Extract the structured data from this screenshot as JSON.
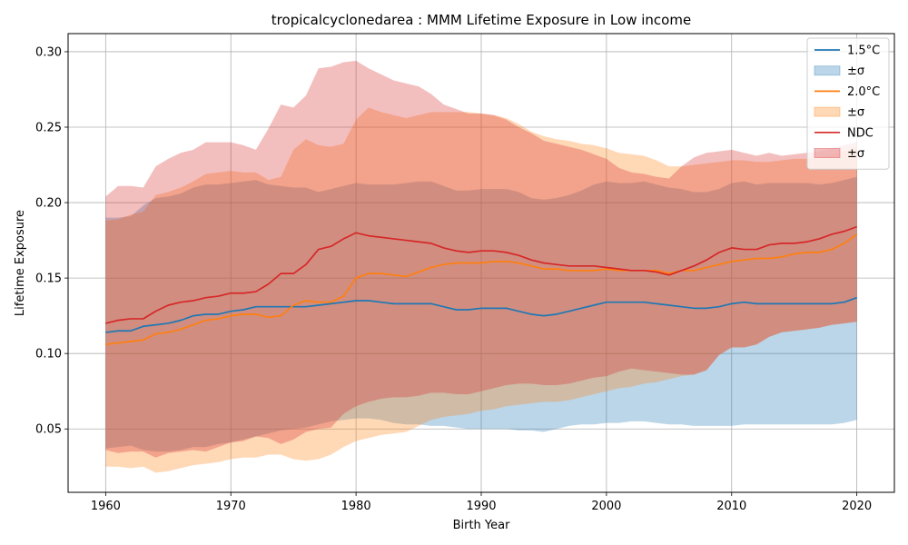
{
  "chart_data": {
    "type": "line",
    "title": "tropicalcyclonedarea : MMM Lifetime Exposure in Low income",
    "xlabel": "Birth Year",
    "ylabel": "Lifetime Exposure",
    "xlim": [
      1957,
      2023
    ],
    "ylim": [
      0.008,
      0.312
    ],
    "xticks": [
      1960,
      1970,
      1980,
      1990,
      2000,
      2010,
      2020
    ],
    "yticks": [
      0.05,
      0.1,
      0.15,
      0.2,
      0.25,
      0.3
    ],
    "ytick_labels": [
      "0.05",
      "0.10",
      "0.15",
      "0.20",
      "0.25",
      "0.30"
    ],
    "grid": true,
    "legend_position": "top-right",
    "x": [
      1960,
      1961,
      1962,
      1963,
      1964,
      1965,
      1966,
      1967,
      1968,
      1969,
      1970,
      1971,
      1972,
      1973,
      1974,
      1975,
      1976,
      1977,
      1978,
      1979,
      1980,
      1981,
      1982,
      1983,
      1984,
      1985,
      1986,
      1987,
      1988,
      1989,
      1990,
      1991,
      1992,
      1993,
      1994,
      1995,
      1996,
      1997,
      1998,
      1999,
      2000,
      2001,
      2002,
      2003,
      2004,
      2005,
      2006,
      2007,
      2008,
      2009,
      2010,
      2011,
      2012,
      2013,
      2014,
      2015,
      2016,
      2017,
      2018,
      2019,
      2020
    ],
    "series": [
      {
        "name": "1.5°C",
        "band_label": "±σ",
        "color": "#1f77b4",
        "mean": [
          0.114,
          0.115,
          0.115,
          0.118,
          0.119,
          0.12,
          0.122,
          0.125,
          0.126,
          0.126,
          0.128,
          0.129,
          0.131,
          0.131,
          0.131,
          0.131,
          0.131,
          0.132,
          0.133,
          0.134,
          0.135,
          0.135,
          0.134,
          0.133,
          0.133,
          0.133,
          0.133,
          0.131,
          0.129,
          0.129,
          0.13,
          0.13,
          0.13,
          0.128,
          0.126,
          0.125,
          0.126,
          0.128,
          0.13,
          0.132,
          0.134,
          0.134,
          0.134,
          0.134,
          0.133,
          0.132,
          0.131,
          0.13,
          0.13,
          0.131,
          0.133,
          0.134,
          0.133,
          0.133,
          0.133,
          0.133,
          0.133,
          0.133,
          0.133,
          0.134,
          0.137
        ],
        "lower": [
          0.037,
          0.038,
          0.039,
          0.036,
          0.035,
          0.035,
          0.036,
          0.038,
          0.038,
          0.04,
          0.041,
          0.043,
          0.045,
          0.047,
          0.049,
          0.05,
          0.051,
          0.053,
          0.055,
          0.056,
          0.057,
          0.057,
          0.056,
          0.054,
          0.053,
          0.053,
          0.052,
          0.052,
          0.051,
          0.05,
          0.05,
          0.05,
          0.05,
          0.049,
          0.049,
          0.048,
          0.05,
          0.052,
          0.053,
          0.053,
          0.054,
          0.054,
          0.055,
          0.055,
          0.054,
          0.053,
          0.053,
          0.052,
          0.052,
          0.052,
          0.052,
          0.053,
          0.053,
          0.053,
          0.053,
          0.053,
          0.053,
          0.053,
          0.053,
          0.054,
          0.056
        ],
        "upper": [
          0.19,
          0.19,
          0.191,
          0.198,
          0.203,
          0.204,
          0.206,
          0.21,
          0.212,
          0.212,
          0.213,
          0.214,
          0.215,
          0.212,
          0.211,
          0.21,
          0.21,
          0.207,
          0.209,
          0.211,
          0.213,
          0.212,
          0.212,
          0.212,
          0.213,
          0.214,
          0.214,
          0.211,
          0.208,
          0.208,
          0.209,
          0.209,
          0.209,
          0.207,
          0.203,
          0.202,
          0.203,
          0.205,
          0.208,
          0.212,
          0.214,
          0.213,
          0.213,
          0.214,
          0.212,
          0.21,
          0.209,
          0.207,
          0.207,
          0.209,
          0.213,
          0.214,
          0.212,
          0.213,
          0.213,
          0.213,
          0.213,
          0.212,
          0.213,
          0.215,
          0.217
        ]
      },
      {
        "name": "2.0°C",
        "band_label": "±σ",
        "color": "#ff7f0e",
        "mean": [
          0.106,
          0.107,
          0.108,
          0.109,
          0.113,
          0.114,
          0.116,
          0.119,
          0.122,
          0.123,
          0.125,
          0.126,
          0.126,
          0.124,
          0.125,
          0.132,
          0.135,
          0.134,
          0.134,
          0.138,
          0.15,
          0.153,
          0.153,
          0.152,
          0.151,
          0.154,
          0.157,
          0.159,
          0.16,
          0.16,
          0.16,
          0.161,
          0.161,
          0.16,
          0.158,
          0.156,
          0.156,
          0.155,
          0.155,
          0.155,
          0.156,
          0.155,
          0.155,
          0.155,
          0.155,
          0.153,
          0.155,
          0.155,
          0.157,
          0.159,
          0.161,
          0.162,
          0.163,
          0.163,
          0.164,
          0.166,
          0.167,
          0.167,
          0.169,
          0.173,
          0.179
        ],
        "lower": [
          0.025,
          0.025,
          0.024,
          0.025,
          0.021,
          0.022,
          0.024,
          0.026,
          0.027,
          0.028,
          0.03,
          0.031,
          0.031,
          0.033,
          0.033,
          0.03,
          0.029,
          0.03,
          0.033,
          0.038,
          0.042,
          0.044,
          0.046,
          0.047,
          0.048,
          0.052,
          0.056,
          0.058,
          0.059,
          0.06,
          0.062,
          0.063,
          0.065,
          0.066,
          0.067,
          0.068,
          0.068,
          0.069,
          0.071,
          0.073,
          0.075,
          0.077,
          0.078,
          0.08,
          0.081,
          0.083,
          0.085,
          0.086,
          0.089,
          0.099,
          0.104,
          0.104,
          0.106,
          0.111,
          0.114,
          0.115,
          0.116,
          0.117,
          0.119,
          0.12,
          0.121
        ],
        "upper": [
          0.188,
          0.189,
          0.192,
          0.194,
          0.205,
          0.207,
          0.21,
          0.214,
          0.219,
          0.22,
          0.221,
          0.22,
          0.22,
          0.215,
          0.217,
          0.235,
          0.242,
          0.238,
          0.237,
          0.239,
          0.255,
          0.263,
          0.26,
          0.258,
          0.256,
          0.258,
          0.26,
          0.26,
          0.26,
          0.26,
          0.259,
          0.258,
          0.256,
          0.252,
          0.247,
          0.244,
          0.242,
          0.241,
          0.239,
          0.238,
          0.236,
          0.233,
          0.232,
          0.231,
          0.228,
          0.224,
          0.224,
          0.225,
          0.226,
          0.227,
          0.228,
          0.228,
          0.227,
          0.227,
          0.228,
          0.229,
          0.229,
          0.23,
          0.232,
          0.234,
          0.237
        ]
      },
      {
        "name": "NDC",
        "band_label": "±σ",
        "color": "#d62728",
        "mean": [
          0.12,
          0.122,
          0.123,
          0.123,
          0.128,
          0.132,
          0.134,
          0.135,
          0.137,
          0.138,
          0.14,
          0.14,
          0.141,
          0.146,
          0.153,
          0.153,
          0.159,
          0.169,
          0.171,
          0.176,
          0.18,
          0.178,
          0.177,
          0.176,
          0.175,
          0.174,
          0.173,
          0.17,
          0.168,
          0.167,
          0.168,
          0.168,
          0.167,
          0.165,
          0.162,
          0.16,
          0.159,
          0.158,
          0.158,
          0.158,
          0.157,
          0.156,
          0.155,
          0.155,
          0.154,
          0.152,
          0.155,
          0.158,
          0.162,
          0.167,
          0.17,
          0.169,
          0.169,
          0.172,
          0.173,
          0.173,
          0.174,
          0.176,
          0.179,
          0.181,
          0.184
        ],
        "lower": [
          0.036,
          0.034,
          0.035,
          0.035,
          0.031,
          0.034,
          0.035,
          0.036,
          0.035,
          0.038,
          0.041,
          0.042,
          0.045,
          0.044,
          0.04,
          0.043,
          0.048,
          0.05,
          0.051,
          0.06,
          0.065,
          0.068,
          0.07,
          0.071,
          0.071,
          0.072,
          0.074,
          0.074,
          0.073,
          0.073,
          0.075,
          0.077,
          0.079,
          0.08,
          0.08,
          0.079,
          0.079,
          0.08,
          0.082,
          0.084,
          0.085,
          0.088,
          0.09,
          0.089,
          0.088,
          0.087,
          0.086,
          0.086,
          0.089,
          0.099,
          0.104,
          0.104,
          0.106,
          0.111,
          0.114,
          0.115,
          0.116,
          0.117,
          0.119,
          0.12,
          0.121
        ],
        "upper": [
          0.204,
          0.211,
          0.211,
          0.21,
          0.224,
          0.229,
          0.233,
          0.235,
          0.24,
          0.24,
          0.24,
          0.238,
          0.235,
          0.249,
          0.265,
          0.263,
          0.271,
          0.289,
          0.29,
          0.293,
          0.294,
          0.289,
          0.285,
          0.281,
          0.279,
          0.277,
          0.272,
          0.265,
          0.262,
          0.259,
          0.259,
          0.258,
          0.255,
          0.25,
          0.246,
          0.241,
          0.239,
          0.237,
          0.235,
          0.232,
          0.229,
          0.223,
          0.22,
          0.219,
          0.217,
          0.216,
          0.224,
          0.23,
          0.233,
          0.234,
          0.235,
          0.233,
          0.231,
          0.233,
          0.231,
          0.232,
          0.233,
          0.234,
          0.236,
          0.238,
          0.24
        ]
      }
    ]
  }
}
